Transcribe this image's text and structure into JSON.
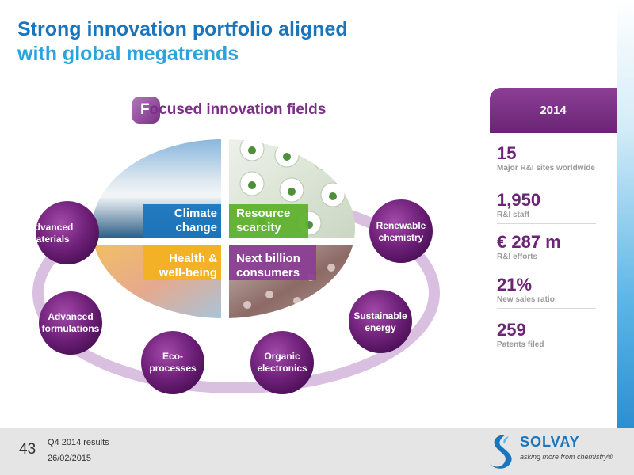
{
  "header": {
    "title_line1": "Strong innovation portfolio aligned",
    "title_line2": "with global megatrends"
  },
  "diagram": {
    "heading_first": "F",
    "heading_rest": "ocused innovation fields",
    "quadrants": [
      {
        "line1": "Climate",
        "line2": "change",
        "color": "#1a75bc"
      },
      {
        "line1": "Resource",
        "line2": "scarcity",
        "color": "#5fb12e"
      },
      {
        "line1": "Health &",
        "line2": "well-being",
        "color": "#f3b221"
      },
      {
        "line1": "Next billion",
        "line2": "consumers",
        "color": "#8b3f95"
      }
    ],
    "fields": [
      {
        "line1": "Advanced",
        "line2": "materials"
      },
      {
        "line1": "Advanced",
        "line2": "formulations"
      },
      {
        "line1": "Eco-",
        "line2": "processes"
      },
      {
        "line1": "Organic",
        "line2": "electronics"
      },
      {
        "line1": "Sustainable",
        "line2": "energy"
      },
      {
        "line1": "Renewable",
        "line2": "chemistry"
      }
    ]
  },
  "stats": {
    "year": "2014",
    "items": [
      {
        "value": "15",
        "label": "Major R&I sites worldwide"
      },
      {
        "value": "1,950",
        "label": "R&I staff"
      },
      {
        "value": "€ 287 m",
        "label": "R&I efforts"
      },
      {
        "value": "21%",
        "label": "New sales ratio"
      },
      {
        "value": "259",
        "label": "Patents filed"
      }
    ]
  },
  "footer": {
    "page_number": "43",
    "line1": "Q4 2014 results",
    "line2": "26/02/2015"
  },
  "brand": {
    "name": "SOLVAY",
    "tagline": "asking more from chemistry®",
    "primary_color": "#1a75bc",
    "accent_color": "#7b2f86"
  }
}
